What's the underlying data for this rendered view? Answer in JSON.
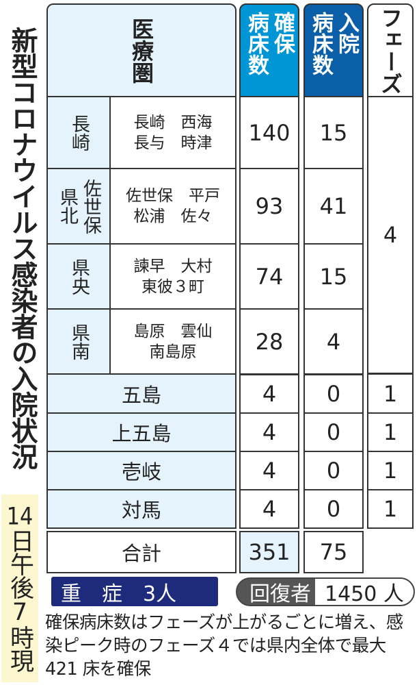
{
  "title": "新型コロナウイルス感染者の入院状況",
  "date": {
    "day": "14",
    "rest": "日午後7時現在"
  },
  "chart_data": {
    "type": "table",
    "headers": {
      "area": "医療圏",
      "secured_beds": [
        "確保",
        "病床数"
      ],
      "inpatients": [
        "入院",
        "病床数"
      ],
      "phase": "フェーズ"
    },
    "rows": [
      {
        "region": [
          "長崎"
        ],
        "areas": "長崎　西海\n長与　時津",
        "secured_beds": "140",
        "inpatients": "15"
      },
      {
        "region": [
          "佐世保",
          "県北"
        ],
        "areas": "佐世保　平戸\n松浦　佐々",
        "secured_beds": "93",
        "inpatients": "41"
      },
      {
        "region": [
          "県央"
        ],
        "areas": "諫早　大村\n東彼３町",
        "secured_beds": "74",
        "inpatients": "15"
      },
      {
        "region": [
          "県南"
        ],
        "areas": "島原　雲仙\n南島原",
        "secured_beds": "28",
        "inpatients": "4"
      },
      {
        "region": [
          "五島"
        ],
        "secured_beds": "4",
        "inpatients": "0",
        "phase": "1"
      },
      {
        "region": [
          "上五島"
        ],
        "secured_beds": "4",
        "inpatients": "0",
        "phase": "1"
      },
      {
        "region": [
          "壱岐"
        ],
        "secured_beds": "4",
        "inpatients": "0",
        "phase": "1"
      },
      {
        "region": [
          "対馬"
        ],
        "secured_beds": "4",
        "inpatients": "0",
        "phase": "1"
      }
    ],
    "mainland_phase": "4",
    "total": {
      "label": "合計",
      "secured_beds": "351",
      "inpatients": "75"
    }
  },
  "severe": {
    "label": "重　症",
    "value": "3人"
  },
  "recovered": {
    "label": "回復者",
    "value": "1450 人"
  },
  "note": "確保病床数はフェーズが上がるごとに増え、感染ピーク時のフェーズ４では県内全体で最大 421 床を確保",
  "colors": {
    "header_light": "#e5f3fc",
    "secured_beds": "#0096d6",
    "inpatients": "#0b5fa9",
    "severe": "#1e2a7c",
    "recovered": "#555555",
    "date_bg": "#fcf7cf"
  }
}
